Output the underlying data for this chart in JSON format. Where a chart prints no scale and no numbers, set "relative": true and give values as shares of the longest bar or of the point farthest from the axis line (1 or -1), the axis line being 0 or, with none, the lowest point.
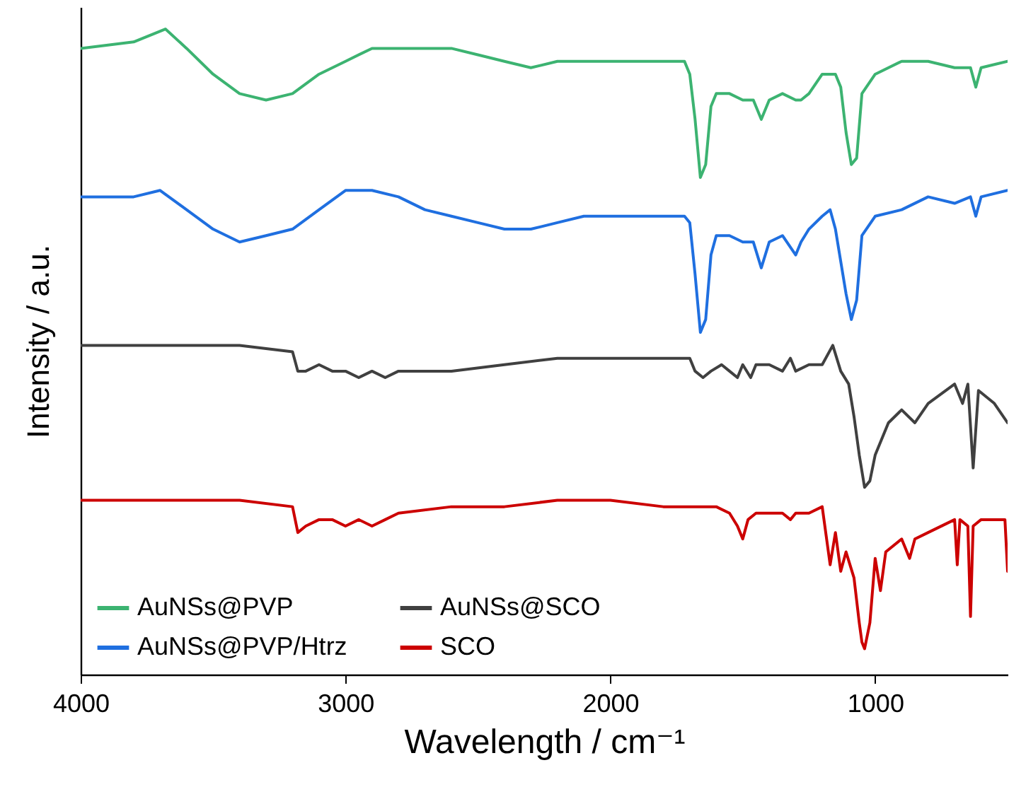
{
  "chart_data": {
    "type": "line",
    "relative": true,
    "xlabel": "Wavelength / cm⁻¹",
    "ylabel": "Intensity / a.u.",
    "xlim": [
      4000,
      500
    ],
    "xticks": [
      4000,
      3000,
      2000,
      1000
    ],
    "legend": "bottom left",
    "grid": false,
    "marker": "none",
    "line_style": "solid",
    "series": [
      {
        "name": "AuNSs@PVP",
        "color": "#3cb371",
        "x": [
          4000,
          3800,
          3680,
          3600,
          3500,
          3400,
          3300,
          3200,
          3100,
          3000,
          2900,
          2800,
          2700,
          2600,
          2500,
          2400,
          2300,
          2200,
          2100,
          2000,
          1900,
          1800,
          1720,
          1700,
          1680,
          1660,
          1640,
          1620,
          1600,
          1550,
          1500,
          1460,
          1430,
          1400,
          1350,
          1300,
          1280,
          1250,
          1200,
          1150,
          1130,
          1110,
          1090,
          1070,
          1050,
          1000,
          900,
          800,
          700,
          640,
          620,
          600,
          500
        ],
        "values": [
          0.97,
          0.98,
          1,
          0.97,
          0.93,
          0.9,
          0.89,
          0.9,
          0.93,
          0.95,
          0.97,
          0.97,
          0.97,
          0.97,
          0.96,
          0.95,
          0.94,
          0.95,
          0.95,
          0.95,
          0.95,
          0.95,
          0.95,
          0.93,
          0.86,
          0.77,
          0.79,
          0.88,
          0.9,
          0.9,
          0.89,
          0.89,
          0.86,
          0.89,
          0.9,
          0.89,
          0.89,
          0.9,
          0.93,
          0.93,
          0.91,
          0.84,
          0.79,
          0.8,
          0.9,
          0.93,
          0.95,
          0.95,
          0.94,
          0.94,
          0.91,
          0.94,
          0.95
        ]
      },
      {
        "name": "AuNSs@PVP/Htrz",
        "color": "#1f6fe0",
        "x": [
          4000,
          3800,
          3700,
          3600,
          3500,
          3400,
          3300,
          3200,
          3100,
          3000,
          2900,
          2800,
          2700,
          2600,
          2500,
          2400,
          2300,
          2200,
          2100,
          2000,
          1900,
          1800,
          1720,
          1700,
          1680,
          1660,
          1640,
          1620,
          1600,
          1550,
          1500,
          1460,
          1430,
          1400,
          1350,
          1300,
          1280,
          1250,
          1200,
          1170,
          1150,
          1110,
          1090,
          1070,
          1050,
          1000,
          900,
          800,
          700,
          640,
          620,
          600,
          500
        ],
        "values": [
          0.74,
          0.74,
          0.75,
          0.72,
          0.69,
          0.67,
          0.68,
          0.69,
          0.72,
          0.75,
          0.75,
          0.74,
          0.72,
          0.71,
          0.7,
          0.69,
          0.69,
          0.7,
          0.71,
          0.71,
          0.71,
          0.71,
          0.71,
          0.7,
          0.62,
          0.53,
          0.55,
          0.65,
          0.68,
          0.68,
          0.67,
          0.67,
          0.63,
          0.67,
          0.68,
          0.65,
          0.67,
          0.69,
          0.71,
          0.72,
          0.69,
          0.59,
          0.55,
          0.58,
          0.68,
          0.71,
          0.72,
          0.74,
          0.73,
          0.74,
          0.71,
          0.74,
          0.75
        ]
      },
      {
        "name": "AuNSs@SCO",
        "color": "#404040",
        "x": [
          4000,
          3800,
          3680,
          3600,
          3400,
          3200,
          3180,
          3150,
          3100,
          3050,
          3000,
          2950,
          2900,
          2850,
          2800,
          2600,
          2400,
          2200,
          2000,
          1800,
          1700,
          1680,
          1650,
          1620,
          1580,
          1550,
          1520,
          1500,
          1470,
          1450,
          1400,
          1350,
          1320,
          1300,
          1250,
          1200,
          1160,
          1130,
          1100,
          1080,
          1060,
          1040,
          1020,
          1000,
          950,
          900,
          850,
          800,
          700,
          670,
          650,
          630,
          610,
          550,
          500
        ],
        "values": [
          0.51,
          0.51,
          0.51,
          0.51,
          0.51,
          0.5,
          0.47,
          0.47,
          0.48,
          0.47,
          0.47,
          0.46,
          0.47,
          0.46,
          0.47,
          0.47,
          0.48,
          0.49,
          0.49,
          0.49,
          0.49,
          0.47,
          0.46,
          0.47,
          0.48,
          0.47,
          0.46,
          0.48,
          0.46,
          0.48,
          0.48,
          0.47,
          0.49,
          0.47,
          0.48,
          0.48,
          0.51,
          0.47,
          0.45,
          0.4,
          0.34,
          0.29,
          0.3,
          0.34,
          0.39,
          0.41,
          0.39,
          0.42,
          0.45,
          0.42,
          0.45,
          0.32,
          0.44,
          0.42,
          0.39
        ]
      },
      {
        "name": "SCO",
        "color": "#cc0000",
        "x": [
          4000,
          3700,
          3600,
          3400,
          3200,
          3180,
          3150,
          3100,
          3050,
          3000,
          2950,
          2900,
          2850,
          2800,
          2600,
          2400,
          2200,
          2000,
          1800,
          1700,
          1600,
          1550,
          1520,
          1500,
          1480,
          1450,
          1400,
          1350,
          1320,
          1300,
          1250,
          1200,
          1170,
          1150,
          1130,
          1110,
          1080,
          1060,
          1050,
          1040,
          1020,
          1000,
          980,
          960,
          900,
          870,
          850,
          800,
          700,
          690,
          680,
          650,
          640,
          630,
          600,
          510,
          500
        ],
        "values": [
          0.27,
          0.27,
          0.27,
          0.27,
          0.26,
          0.22,
          0.23,
          0.24,
          0.24,
          0.23,
          0.24,
          0.23,
          0.24,
          0.25,
          0.26,
          0.26,
          0.27,
          0.27,
          0.26,
          0.26,
          0.26,
          0.25,
          0.23,
          0.21,
          0.24,
          0.25,
          0.25,
          0.25,
          0.24,
          0.25,
          0.25,
          0.26,
          0.17,
          0.22,
          0.16,
          0.19,
          0.15,
          0.08,
          0.05,
          0.04,
          0.08,
          0.18,
          0.13,
          0.19,
          0.21,
          0.18,
          0.21,
          0.22,
          0.24,
          0.17,
          0.24,
          0.23,
          0.09,
          0.23,
          0.24,
          0.24,
          0.16
        ]
      }
    ]
  }
}
